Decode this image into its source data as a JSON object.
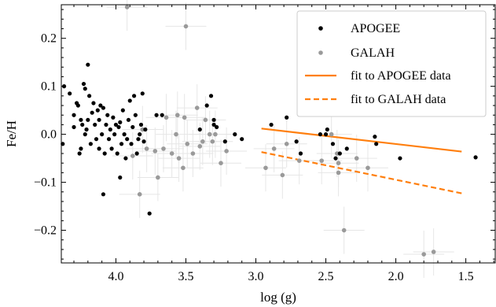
{
  "chart_data": {
    "type": "scatter",
    "xlabel": "log (g)",
    "ylabel": "Fe/H",
    "xlim": [
      4.39,
      1.29
    ],
    "ylim": [
      -0.268,
      0.27
    ],
    "x_inverted": true,
    "xticks": [
      4.0,
      3.5,
      3.0,
      2.5,
      2.0,
      1.5
    ],
    "xtick_labels": [
      "4.0",
      "3.5",
      "3.0",
      "2.5",
      "2.0",
      "1.5"
    ],
    "yticks": [
      0.2,
      0.1,
      0.0,
      -0.1,
      -0.2
    ],
    "ytick_labels": [
      "0.2",
      "0.1",
      "0.0",
      "−0.1",
      "−0.2"
    ],
    "grid": false,
    "legend_position": "top-right",
    "colors": {
      "apogee": "#000000",
      "galah": "#9a9a9a",
      "fit": "#ff7f0e",
      "errorbar": "#e6e6e6"
    },
    "series": [
      {
        "name": "APOGEE",
        "kind": "scatter",
        "points": [
          [
            4.38,
            -0.02
          ],
          [
            4.37,
            0.1
          ],
          [
            4.33,
            0.085
          ],
          [
            4.3,
            0.015
          ],
          [
            4.3,
            0.04
          ],
          [
            4.28,
            0.065
          ],
          [
            4.27,
            0.06
          ],
          [
            4.26,
            -0.04
          ],
          [
            4.25,
            -0.03
          ],
          [
            4.25,
            0.03
          ],
          [
            4.24,
            0.02
          ],
          [
            4.23,
            0.105
          ],
          [
            4.22,
            0.095
          ],
          [
            4.22,
            0.0
          ],
          [
            4.21,
            0.01
          ],
          [
            4.2,
            0.145
          ],
          [
            4.2,
            0.03
          ],
          [
            4.19,
            0.08
          ],
          [
            4.18,
            -0.02
          ],
          [
            4.17,
            0.045
          ],
          [
            4.16,
            0.065
          ],
          [
            4.15,
            0.02
          ],
          [
            4.14,
            -0.01
          ],
          [
            4.13,
            0.05
          ],
          [
            4.12,
            0.03
          ],
          [
            4.12,
            -0.03
          ],
          [
            4.11,
            0.06
          ],
          [
            4.1,
            0.0
          ],
          [
            4.09,
            0.055
          ],
          [
            4.08,
            -0.04
          ],
          [
            4.07,
            0.02
          ],
          [
            4.06,
            0.04
          ],
          [
            4.05,
            -0.01
          ],
          [
            4.04,
            0.01
          ],
          [
            4.03,
            -0.03
          ],
          [
            4.02,
            0.035
          ],
          [
            4.01,
            0.0
          ],
          [
            4.0,
            0.02
          ],
          [
            3.99,
            -0.04
          ],
          [
            3.98,
            0.015
          ],
          [
            3.97,
            0.025
          ],
          [
            3.96,
            -0.02
          ],
          [
            3.95,
            0.05
          ],
          [
            3.94,
            0.0
          ],
          [
            3.93,
            -0.05
          ],
          [
            3.92,
            -0.01
          ],
          [
            3.91,
            0.03
          ],
          [
            3.9,
            0.07
          ],
          [
            3.89,
            -0.02
          ],
          [
            3.88,
            0.015
          ],
          [
            3.87,
            0.08
          ],
          [
            3.86,
            0.04
          ],
          [
            3.85,
            -0.04
          ],
          [
            3.84,
            -0.01
          ],
          [
            3.83,
            0.0
          ],
          [
            3.82,
            0.02
          ],
          [
            3.81,
            0.085
          ],
          [
            3.8,
            -0.015
          ],
          [
            3.79,
            0.01
          ],
          [
            3.97,
            -0.09
          ],
          [
            4.09,
            -0.125
          ],
          [
            3.76,
            -0.165
          ],
          [
            3.67,
            0.04
          ],
          [
            3.71,
            0.04
          ],
          [
            3.4,
            0.01
          ],
          [
            3.35,
            0.06
          ],
          [
            3.32,
            0.08
          ],
          [
            3.3,
            0.03
          ],
          [
            3.3,
            0.02
          ],
          [
            3.28,
            0.015
          ],
          [
            3.22,
            -0.015
          ],
          [
            3.15,
            0.0
          ],
          [
            3.1,
            -0.01
          ],
          [
            2.89,
            0.02
          ],
          [
            2.78,
            0.035
          ],
          [
            2.71,
            -0.015
          ],
          [
            2.68,
            -0.04
          ],
          [
            2.54,
            0.0
          ],
          [
            2.5,
            0.0
          ],
          [
            2.49,
            0.01
          ],
          [
            2.45,
            -0.02
          ],
          [
            2.43,
            -0.05
          ],
          [
            2.4,
            -0.04
          ],
          [
            2.35,
            -0.03
          ],
          [
            2.15,
            -0.005
          ],
          [
            2.14,
            -0.02
          ],
          [
            1.97,
            -0.05
          ],
          [
            1.43,
            -0.048
          ]
        ]
      },
      {
        "name": "GALAH",
        "kind": "scatter",
        "points": [
          [
            3.92,
            0.265
          ],
          [
            3.5,
            0.225
          ],
          [
            3.42,
            0.055
          ],
          [
            3.51,
            0.035
          ],
          [
            3.83,
            -0.125
          ],
          [
            3.7,
            -0.09
          ],
          [
            3.64,
            0.035
          ],
          [
            3.57,
            0.0
          ],
          [
            3.56,
            0.04
          ],
          [
            3.52,
            -0.07
          ],
          [
            3.49,
            -0.02
          ],
          [
            3.45,
            -0.04
          ],
          [
            3.4,
            -0.025
          ],
          [
            3.38,
            -0.015
          ],
          [
            3.36,
            0.03
          ],
          [
            3.33,
            0.0
          ],
          [
            3.31,
            -0.015
          ],
          [
            3.29,
            0.0
          ],
          [
            3.25,
            -0.06
          ],
          [
            3.21,
            -0.035
          ],
          [
            3.88,
            -0.045
          ],
          [
            3.81,
            0.01
          ],
          [
            3.78,
            -0.03
          ],
          [
            3.72,
            -0.035
          ],
          [
            3.66,
            -0.03
          ],
          [
            3.6,
            -0.04
          ],
          [
            3.55,
            -0.05
          ],
          [
            2.93,
            -0.07
          ],
          [
            2.87,
            -0.03
          ],
          [
            2.81,
            -0.085
          ],
          [
            2.78,
            -0.02
          ],
          [
            2.69,
            -0.055
          ],
          [
            2.53,
            -0.055
          ],
          [
            2.46,
            0.0
          ],
          [
            2.42,
            -0.04
          ],
          [
            2.41,
            -0.06
          ],
          [
            2.41,
            -0.08
          ],
          [
            2.37,
            -0.2
          ],
          [
            2.2,
            -0.07
          ],
          [
            1.8,
            -0.25
          ],
          [
            1.73,
            -0.245
          ],
          [
            2.28,
            -0.05
          ]
        ]
      },
      {
        "name": "fit to APOGEE data",
        "kind": "line",
        "style": "solid",
        "x": [
          2.96,
          1.53
        ],
        "y": [
          0.012,
          -0.036
        ]
      },
      {
        "name": "fit to GALAH data",
        "kind": "line",
        "style": "dashed",
        "x": [
          2.96,
          1.53
        ],
        "y": [
          -0.037,
          -0.123
        ]
      }
    ]
  }
}
